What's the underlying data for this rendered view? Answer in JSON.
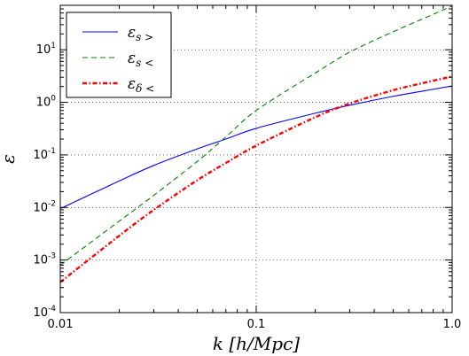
{
  "chart_data": {
    "type": "line",
    "title": "",
    "xlabel": "k [h/Mpc]",
    "ylabel": "ε",
    "x_scale": "log",
    "y_scale": "log",
    "xlim": [
      0.01,
      1.0
    ],
    "ylim": [
      0.0001,
      70
    ],
    "grid": true,
    "legend_position": "top-left",
    "x_tick_labels": [
      "0.01",
      "0.1",
      "1.0"
    ],
    "x_ticks": [
      0.01,
      0.1,
      1.0
    ],
    "y_ticks": [
      {
        "value": 0.0001,
        "base": "10",
        "exp": "-4"
      },
      {
        "value": 0.001,
        "base": "10",
        "exp": "-3"
      },
      {
        "value": 0.01,
        "base": "10",
        "exp": "-2"
      },
      {
        "value": 0.1,
        "base": "10",
        "exp": "-1"
      },
      {
        "value": 1,
        "base": "10",
        "exp": "0"
      },
      {
        "value": 10,
        "base": "10",
        "exp": "1"
      }
    ],
    "series": [
      {
        "name": "ε_{s>}",
        "legend_main": "ε",
        "legend_sub": "s >",
        "color": "#0000ff",
        "style": "solid",
        "x": [
          0.01,
          0.02,
          0.03,
          0.05,
          0.07,
          0.1,
          0.2,
          0.3,
          0.5,
          0.7,
          1.0
        ],
        "y": [
          0.0095,
          0.032,
          0.063,
          0.13,
          0.2,
          0.32,
          0.62,
          0.88,
          1.3,
          1.62,
          2.05
        ]
      },
      {
        "name": "ε_{s<}",
        "legend_main": "ε",
        "legend_sub": "s <",
        "color": "#008000",
        "style": "dashed",
        "x": [
          0.01,
          0.02,
          0.03,
          0.05,
          0.07,
          0.1,
          0.2,
          0.3,
          0.5,
          0.7,
          0.85,
          1.0
        ],
        "y": [
          0.0008,
          0.0055,
          0.017,
          0.075,
          0.22,
          0.7,
          3.6,
          9.0,
          22,
          38,
          52,
          68
        ]
      },
      {
        "name": "ε_{δ<}",
        "legend_main": "ε",
        "legend_sub": "δ <",
        "color": "#ff0000",
        "style": "dashdot",
        "x": [
          0.01,
          0.02,
          0.03,
          0.05,
          0.07,
          0.1,
          0.2,
          0.3,
          0.5,
          0.7,
          1.0
        ],
        "y": [
          0.00038,
          0.0029,
          0.009,
          0.033,
          0.07,
          0.15,
          0.52,
          0.95,
          1.7,
          2.3,
          3.1
        ]
      }
    ]
  }
}
